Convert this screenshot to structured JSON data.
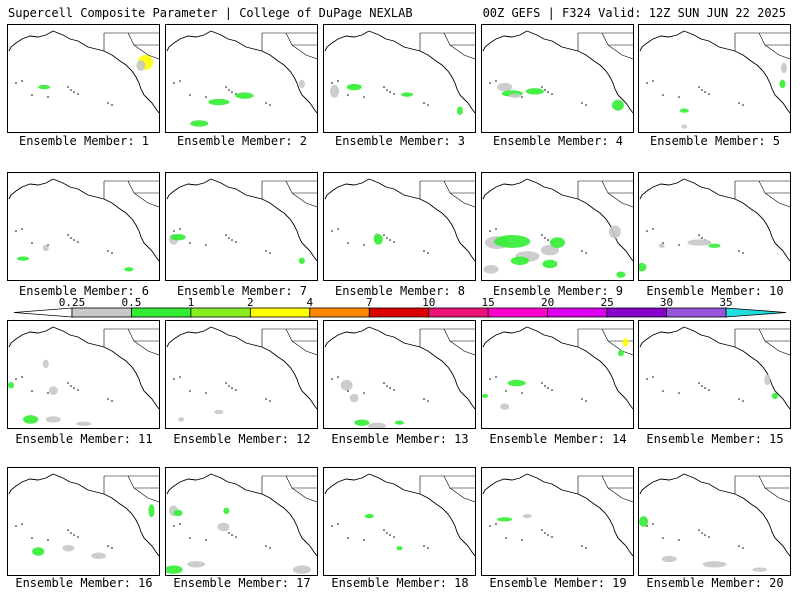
{
  "header": {
    "left_title": "Supercell Composite Parameter | College of DuPage NEXLAB",
    "right_title": "00Z GEFS | F324 Valid: 12Z SUN JUN 22 2025"
  },
  "colorbar": {
    "ticks": [
      "0.25",
      "0.5",
      "1",
      "2",
      "4",
      "7",
      "10",
      "15",
      "20",
      "25",
      "30",
      "35"
    ],
    "colors": [
      "#c8c8c8",
      "#33ee33",
      "#88ee22",
      "#ffff00",
      "#ff8800",
      "#dd0000",
      "#ee1177",
      "#ff00cc",
      "#dd00ee",
      "#8800cc",
      "#9955dd",
      "#22dddd"
    ]
  },
  "panels": [
    {
      "label": "Ensemble Member: 1",
      "blobs": [
        [
          "g",
          0.24,
          0.58,
          0.04,
          0.02
        ],
        [
          "y",
          0.91,
          0.35,
          0.05,
          0.07
        ],
        [
          "n",
          0.88,
          0.38,
          0.03,
          0.05
        ]
      ]
    },
    {
      "label": "Ensemble Member: 2",
      "blobs": [
        [
          "g",
          0.35,
          0.72,
          0.07,
          0.03
        ],
        [
          "g",
          0.52,
          0.66,
          0.06,
          0.03
        ],
        [
          "g",
          0.22,
          0.92,
          0.06,
          0.03
        ],
        [
          "n",
          0.9,
          0.55,
          0.02,
          0.04
        ]
      ]
    },
    {
      "label": "Ensemble Member: 3",
      "blobs": [
        [
          "n",
          0.07,
          0.62,
          0.03,
          0.06
        ],
        [
          "g",
          0.2,
          0.58,
          0.05,
          0.03
        ],
        [
          "g",
          0.9,
          0.8,
          0.02,
          0.04
        ],
        [
          "g",
          0.55,
          0.65,
          0.04,
          0.02
        ]
      ]
    },
    {
      "label": "Ensemble Member: 4",
      "blobs": [
        [
          "n",
          0.15,
          0.58,
          0.05,
          0.04
        ],
        [
          "g",
          0.2,
          0.64,
          0.07,
          0.03
        ],
        [
          "n",
          0.22,
          0.66,
          0.04,
          0.02
        ],
        [
          "g",
          0.35,
          0.62,
          0.06,
          0.03
        ],
        [
          "g",
          0.9,
          0.75,
          0.04,
          0.05
        ]
      ]
    },
    {
      "label": "Ensemble Member: 5",
      "blobs": [
        [
          "n",
          0.96,
          0.4,
          0.02,
          0.05
        ],
        [
          "g",
          0.95,
          0.55,
          0.02,
          0.04
        ],
        [
          "g",
          0.3,
          0.8,
          0.03,
          0.02
        ],
        [
          "n",
          0.3,
          0.95,
          0.02,
          0.02
        ]
      ]
    },
    {
      "label": "Ensemble Member: 6",
      "blobs": [
        [
          "n",
          0.25,
          0.7,
          0.02,
          0.03
        ],
        [
          "g",
          0.1,
          0.8,
          0.04,
          0.02
        ],
        [
          "g",
          0.8,
          0.9,
          0.03,
          0.02
        ]
      ]
    },
    {
      "label": "Ensemble Member: 7",
      "blobs": [
        [
          "n",
          0.05,
          0.62,
          0.03,
          0.05
        ],
        [
          "g",
          0.08,
          0.6,
          0.05,
          0.03
        ],
        [
          "g",
          0.9,
          0.82,
          0.02,
          0.03
        ]
      ]
    },
    {
      "label": "Ensemble Member: 8",
      "blobs": [
        [
          "n",
          0.35,
          0.6,
          0.02,
          0.04
        ],
        [
          "g",
          0.36,
          0.62,
          0.03,
          0.05
        ]
      ]
    },
    {
      "label": "Ensemble Member: 9",
      "blobs": [
        [
          "n",
          0.1,
          0.65,
          0.08,
          0.06
        ],
        [
          "g",
          0.2,
          0.64,
          0.12,
          0.06
        ],
        [
          "n",
          0.3,
          0.78,
          0.08,
          0.05
        ],
        [
          "g",
          0.25,
          0.82,
          0.06,
          0.04
        ],
        [
          "n",
          0.45,
          0.72,
          0.06,
          0.05
        ],
        [
          "g",
          0.5,
          0.65,
          0.05,
          0.05
        ],
        [
          "g",
          0.45,
          0.85,
          0.05,
          0.04
        ],
        [
          "n",
          0.88,
          0.55,
          0.04,
          0.06
        ],
        [
          "n",
          0.06,
          0.9,
          0.05,
          0.04
        ],
        [
          "g",
          0.92,
          0.95,
          0.03,
          0.03
        ]
      ]
    },
    {
      "label": "Ensemble Member: 10",
      "blobs": [
        [
          "n",
          0.4,
          0.65,
          0.08,
          0.03
        ],
        [
          "g",
          0.5,
          0.68,
          0.04,
          0.02
        ],
        [
          "g",
          0.02,
          0.88,
          0.03,
          0.04
        ],
        [
          "n",
          0.15,
          0.68,
          0.02,
          0.02
        ]
      ]
    },
    {
      "label": "Ensemble Member: 11",
      "blobs": [
        [
          "n",
          0.25,
          0.4,
          0.02,
          0.04
        ],
        [
          "n",
          0.3,
          0.65,
          0.03,
          0.04
        ],
        [
          "g",
          0.02,
          0.6,
          0.02,
          0.03
        ],
        [
          "g",
          0.15,
          0.92,
          0.05,
          0.04
        ],
        [
          "n",
          0.3,
          0.92,
          0.05,
          0.03
        ],
        [
          "n",
          0.5,
          0.96,
          0.05,
          0.02
        ]
      ]
    },
    {
      "label": "Ensemble Member: 12",
      "blobs": [
        [
          "n",
          0.35,
          0.85,
          0.03,
          0.02
        ],
        [
          "n",
          0.1,
          0.92,
          0.02,
          0.02
        ]
      ]
    },
    {
      "label": "Ensemble Member: 13",
      "blobs": [
        [
          "n",
          0.15,
          0.6,
          0.04,
          0.05
        ],
        [
          "n",
          0.2,
          0.72,
          0.03,
          0.04
        ],
        [
          "g",
          0.25,
          0.95,
          0.05,
          0.03
        ],
        [
          "n",
          0.35,
          0.98,
          0.06,
          0.03
        ],
        [
          "g",
          0.5,
          0.95,
          0.03,
          0.02
        ]
      ]
    },
    {
      "label": "Ensemble Member: 14",
      "blobs": [
        [
          "y",
          0.95,
          0.2,
          0.02,
          0.04
        ],
        [
          "g",
          0.92,
          0.3,
          0.02,
          0.03
        ],
        [
          "g",
          0.23,
          0.58,
          0.06,
          0.03
        ],
        [
          "n",
          0.15,
          0.8,
          0.03,
          0.03
        ],
        [
          "g",
          0.02,
          0.7,
          0.02,
          0.02
        ]
      ]
    },
    {
      "label": "Ensemble Member: 15",
      "blobs": [
        [
          "n",
          0.85,
          0.55,
          0.02,
          0.05
        ],
        [
          "g",
          0.9,
          0.7,
          0.02,
          0.03
        ]
      ]
    },
    {
      "label": "Ensemble Member: 16",
      "blobs": [
        [
          "g",
          0.95,
          0.4,
          0.02,
          0.06
        ],
        [
          "g",
          0.2,
          0.78,
          0.04,
          0.04
        ],
        [
          "n",
          0.4,
          0.75,
          0.04,
          0.03
        ],
        [
          "n",
          0.6,
          0.82,
          0.05,
          0.03
        ]
      ]
    },
    {
      "label": "Ensemble Member: 17",
      "blobs": [
        [
          "n",
          0.05,
          0.4,
          0.03,
          0.05
        ],
        [
          "g",
          0.08,
          0.42,
          0.03,
          0.03
        ],
        [
          "n",
          0.38,
          0.55,
          0.04,
          0.04
        ],
        [
          "g",
          0.4,
          0.4,
          0.02,
          0.03
        ],
        [
          "g",
          0.05,
          0.95,
          0.06,
          0.04
        ],
        [
          "n",
          0.2,
          0.9,
          0.06,
          0.03
        ],
        [
          "n",
          0.9,
          0.95,
          0.06,
          0.04
        ]
      ]
    },
    {
      "label": "Ensemble Member: 18",
      "blobs": [
        [
          "g",
          0.3,
          0.45,
          0.03,
          0.02
        ],
        [
          "g",
          0.5,
          0.75,
          0.02,
          0.02
        ]
      ]
    },
    {
      "label": "Ensemble Member: 19",
      "blobs": [
        [
          "g",
          0.15,
          0.48,
          0.05,
          0.02
        ],
        [
          "n",
          0.3,
          0.45,
          0.03,
          0.02
        ]
      ]
    },
    {
      "label": "Ensemble Member: 20",
      "blobs": [
        [
          "g",
          0.03,
          0.5,
          0.03,
          0.05
        ],
        [
          "n",
          0.2,
          0.85,
          0.05,
          0.03
        ],
        [
          "n",
          0.5,
          0.9,
          0.08,
          0.03
        ],
        [
          "n",
          0.8,
          0.95,
          0.05,
          0.02
        ]
      ]
    }
  ]
}
